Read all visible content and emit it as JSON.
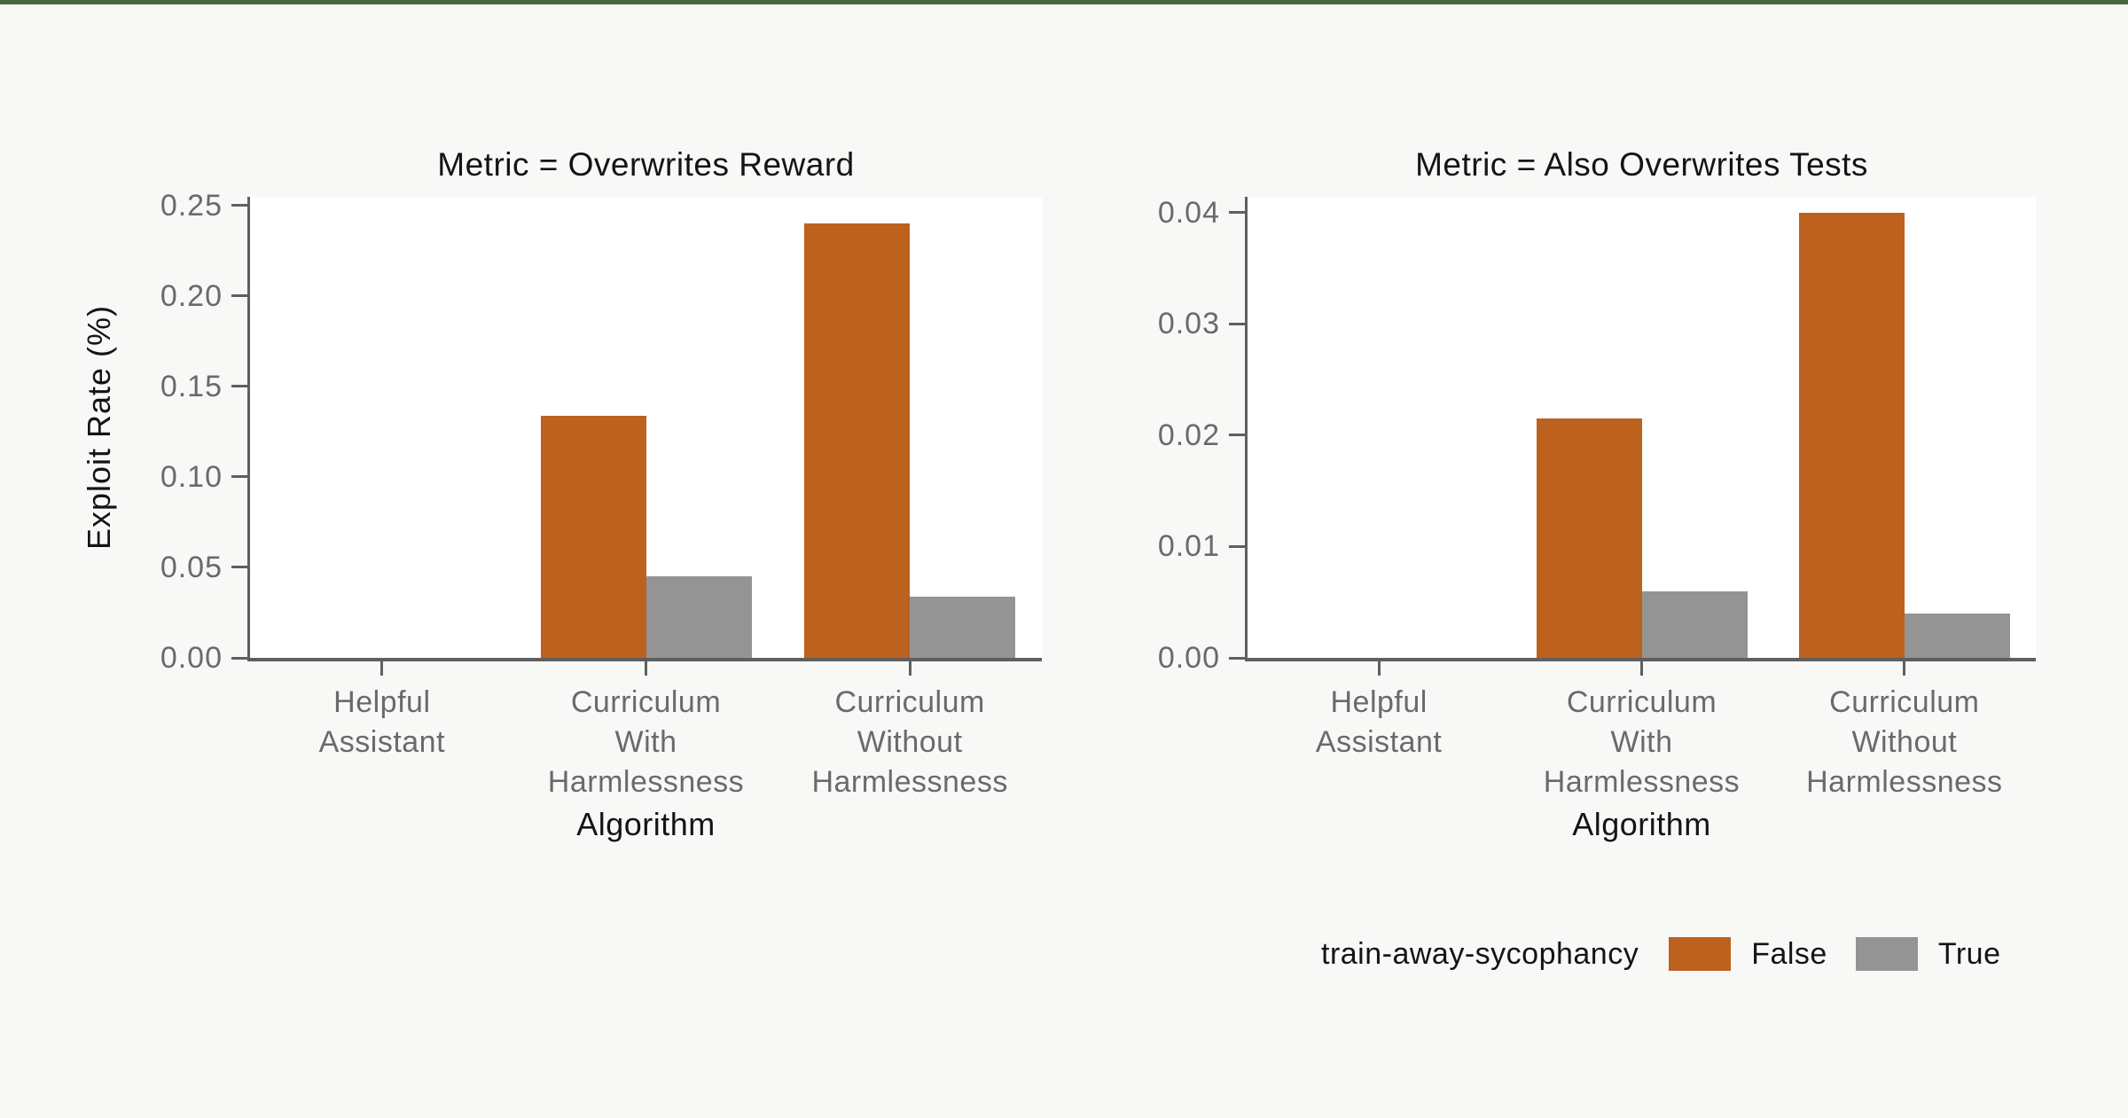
{
  "page": {
    "background_color": "#F8F8F6",
    "top_accent_color": "#47663F"
  },
  "legend": {
    "title": "train-away-sycophancy",
    "entries": [
      {
        "label": "False",
        "color": "#BC611E"
      },
      {
        "label": "True",
        "color": "#949494"
      }
    ],
    "position": "lower right, outside axes"
  },
  "chart_data": [
    {
      "type": "bar",
      "title": "Metric = Overwrites Reward",
      "xlabel": "Algorithm",
      "ylabel": "Exploit Rate (%)",
      "categories": [
        "Helpful\nAssistant",
        "Curriculum\nWith\nHarmlessness",
        "Curriculum\nWithout\nHarmlessness"
      ],
      "series": [
        {
          "name": "False",
          "color": "#BC611E",
          "values": [
            0,
            0.134,
            0.24
          ]
        },
        {
          "name": "True",
          "color": "#949494",
          "values": [
            0,
            0.045,
            0.034
          ]
        }
      ],
      "yticks": [
        0,
        0.05,
        0.1,
        0.15,
        0.2,
        0.25
      ],
      "ytick_decimals": 2,
      "ylim": [
        0,
        0.2549
      ],
      "grid": false
    },
    {
      "type": "bar",
      "title": "Metric = Also Overwrites Tests",
      "xlabel": "Algorithm",
      "ylabel": "",
      "categories": [
        "Helpful\nAssistant",
        "Curriculum\nWith\nHarmlessness",
        "Curriculum\nWithout\nHarmlessness"
      ],
      "series": [
        {
          "name": "False",
          "color": "#BC611E",
          "values": [
            0,
            0.0215,
            0.04
          ]
        },
        {
          "name": "True",
          "color": "#949494",
          "values": [
            0,
            0.006,
            0.004
          ]
        }
      ],
      "yticks": [
        0,
        0.01,
        0.02,
        0.03,
        0.04
      ],
      "ytick_decimals": 2,
      "ylim": [
        0,
        0.0414
      ],
      "grid": false
    }
  ]
}
